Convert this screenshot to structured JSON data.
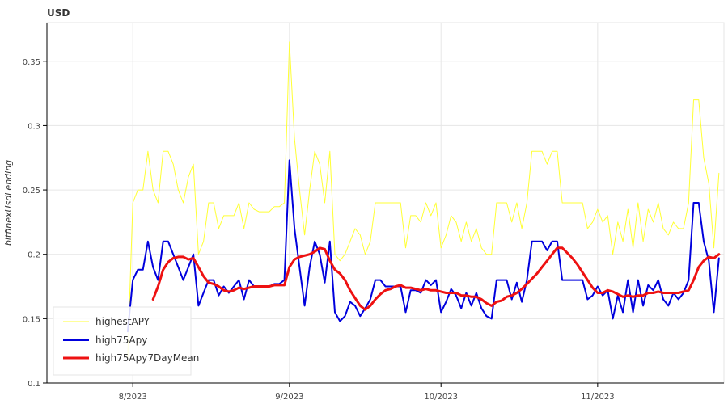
{
  "chart_data": {
    "type": "line",
    "title": "USD",
    "xlabel": "",
    "ylabel": "bitfinexUsdLending",
    "ylim": [
      0.1,
      0.38
    ],
    "yticks": [
      0.1,
      0.15,
      0.2,
      0.25,
      0.3,
      0.35
    ],
    "ytick_labels": [
      "0.1",
      "0.15",
      "0.2",
      "0.25",
      "0.3",
      "0.35"
    ],
    "xlim": [
      "2023-07-15",
      "2023-11-26"
    ],
    "xticks": [
      "2023-08-01",
      "2023-09-01",
      "2023-10-01",
      "2023-11-01"
    ],
    "xtick_labels": [
      "8/2023",
      "9/2023",
      "10/2023",
      "11/2023"
    ],
    "grid": true,
    "legend_position": "bottom-left",
    "x_start": "2023-07-31",
    "series": [
      {
        "name": "highestAPY",
        "color": "#ffff33",
        "width": 1,
        "values": [
          0.12,
          0.24,
          0.25,
          0.25,
          0.28,
          0.25,
          0.24,
          0.28,
          0.28,
          0.27,
          0.25,
          0.24,
          0.26,
          0.27,
          0.2,
          0.21,
          0.24,
          0.24,
          0.22,
          0.23,
          0.23,
          0.23,
          0.24,
          0.22,
          0.24,
          0.235,
          0.233,
          0.233,
          0.233,
          0.237,
          0.237,
          0.24,
          0.365,
          0.29,
          0.25,
          0.215,
          0.25,
          0.28,
          0.27,
          0.24,
          0.28,
          0.2,
          0.195,
          0.2,
          0.21,
          0.22,
          0.215,
          0.2,
          0.21,
          0.24,
          0.24,
          0.24,
          0.24,
          0.24,
          0.24,
          0.205,
          0.23,
          0.23,
          0.225,
          0.24,
          0.23,
          0.24,
          0.205,
          0.215,
          0.23,
          0.225,
          0.21,
          0.225,
          0.21,
          0.22,
          0.205,
          0.2,
          0.2,
          0.24,
          0.24,
          0.24,
          0.225,
          0.24,
          0.22,
          0.24,
          0.28,
          0.28,
          0.28,
          0.27,
          0.28,
          0.28,
          0.24,
          0.24,
          0.24,
          0.24,
          0.24,
          0.22,
          0.225,
          0.235,
          0.225,
          0.23,
          0.2,
          0.225,
          0.21,
          0.235,
          0.205,
          0.24,
          0.21,
          0.235,
          0.225,
          0.24,
          0.22,
          0.215,
          0.225,
          0.22,
          0.22,
          0.24,
          0.32,
          0.32,
          0.275,
          0.255,
          0.205,
          0.263
        ]
      },
      {
        "name": "high75Apy",
        "color": "#0000dd",
        "width": 2,
        "values": [
          0.14,
          0.18,
          0.188,
          0.188,
          0.21,
          0.19,
          0.18,
          0.21,
          0.21,
          0.2,
          0.19,
          0.18,
          0.19,
          0.2,
          0.16,
          0.17,
          0.18,
          0.18,
          0.168,
          0.175,
          0.17,
          0.175,
          0.18,
          0.165,
          0.18,
          0.175,
          0.175,
          0.175,
          0.175,
          0.177,
          0.177,
          0.18,
          0.273,
          0.22,
          0.19,
          0.16,
          0.19,
          0.21,
          0.2,
          0.178,
          0.21,
          0.155,
          0.148,
          0.152,
          0.163,
          0.16,
          0.152,
          0.158,
          0.165,
          0.18,
          0.18,
          0.175,
          0.175,
          0.175,
          0.175,
          0.155,
          0.172,
          0.172,
          0.17,
          0.18,
          0.176,
          0.18,
          0.155,
          0.163,
          0.173,
          0.168,
          0.158,
          0.17,
          0.16,
          0.17,
          0.158,
          0.152,
          0.15,
          0.18,
          0.18,
          0.18,
          0.165,
          0.178,
          0.163,
          0.18,
          0.21,
          0.21,
          0.21,
          0.203,
          0.21,
          0.21,
          0.18,
          0.18,
          0.18,
          0.18,
          0.18,
          0.165,
          0.168,
          0.175,
          0.168,
          0.172,
          0.15,
          0.168,
          0.155,
          0.18,
          0.155,
          0.18,
          0.16,
          0.176,
          0.172,
          0.18,
          0.165,
          0.16,
          0.17,
          0.165,
          0.17,
          0.18,
          0.24,
          0.24,
          0.21,
          0.195,
          0.155,
          0.197
        ]
      },
      {
        "name": "high75Apy7DayMean",
        "color": "#ee1111",
        "width": 3,
        "values": [
          null,
          null,
          null,
          null,
          null,
          0.165,
          0.175,
          0.188,
          0.194,
          0.197,
          0.198,
          0.198,
          0.196,
          0.197,
          0.19,
          0.183,
          0.178,
          0.177,
          0.175,
          0.172,
          0.171,
          0.172,
          0.174,
          0.173,
          0.174,
          0.175,
          0.175,
          0.175,
          0.175,
          0.176,
          0.176,
          0.176,
          0.19,
          0.196,
          0.198,
          0.199,
          0.2,
          0.202,
          0.205,
          0.204,
          0.195,
          0.188,
          0.185,
          0.18,
          0.172,
          0.166,
          0.16,
          0.157,
          0.16,
          0.165,
          0.169,
          0.172,
          0.173,
          0.175,
          0.176,
          0.174,
          0.174,
          0.173,
          0.172,
          0.173,
          0.172,
          0.172,
          0.171,
          0.17,
          0.17,
          0.17,
          0.168,
          0.168,
          0.167,
          0.167,
          0.165,
          0.162,
          0.16,
          0.163,
          0.164,
          0.167,
          0.168,
          0.17,
          0.173,
          0.177,
          0.181,
          0.185,
          0.19,
          0.195,
          0.2,
          0.205,
          0.205,
          0.201,
          0.197,
          0.192,
          0.186,
          0.18,
          0.174,
          0.17,
          0.17,
          0.172,
          0.171,
          0.169,
          0.167,
          0.168,
          0.167,
          0.168,
          0.168,
          0.17,
          0.17,
          0.171,
          0.17,
          0.17,
          0.17,
          0.17,
          0.171,
          0.172,
          0.18,
          0.19,
          0.195,
          0.198,
          0.197,
          0.2
        ]
      }
    ]
  }
}
